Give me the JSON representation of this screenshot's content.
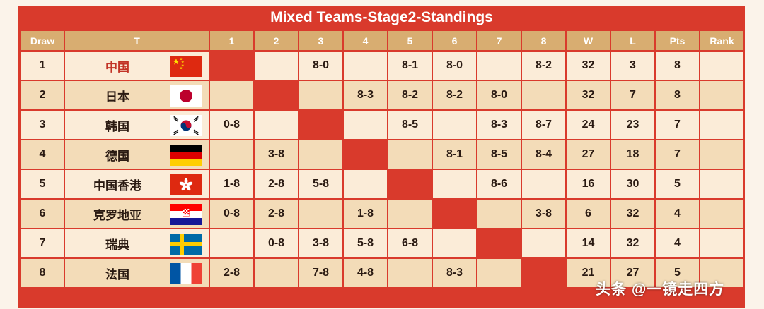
{
  "title": "Mixed Teams-Stage2-Standings",
  "headers": {
    "draw": "Draw",
    "team": "T",
    "cols": [
      "1",
      "2",
      "3",
      "4",
      "5",
      "6",
      "7",
      "8"
    ],
    "w": "W",
    "l": "L",
    "pts": "Pts",
    "rank": "Rank"
  },
  "rows": [
    {
      "draw": "1",
      "team": "中国",
      "flag": "china-flag-icon",
      "results": [
        "",
        "",
        "8-0",
        "",
        "8-1",
        "8-0",
        "",
        "8-2"
      ],
      "w": "32",
      "l": "3",
      "pts": "8",
      "rank": ""
    },
    {
      "draw": "2",
      "team": "日本",
      "flag": "japan-flag-icon",
      "results": [
        "",
        "",
        "",
        "8-3",
        "8-2",
        "8-2",
        "8-0",
        ""
      ],
      "w": "32",
      "l": "7",
      "pts": "8",
      "rank": ""
    },
    {
      "draw": "3",
      "team": "韩国",
      "flag": "korea-flag-icon",
      "results": [
        "0-8",
        "",
        "",
        "",
        "8-5",
        "",
        "8-3",
        "8-7"
      ],
      "w": "24",
      "l": "23",
      "pts": "7",
      "rank": ""
    },
    {
      "draw": "4",
      "team": "德国",
      "flag": "germany-flag-icon",
      "results": [
        "",
        "3-8",
        "",
        "",
        "",
        "8-1",
        "8-5",
        "8-4"
      ],
      "w": "27",
      "l": "18",
      "pts": "7",
      "rank": ""
    },
    {
      "draw": "5",
      "team": "中国香港",
      "flag": "hong-kong-flag-icon",
      "results": [
        "1-8",
        "2-8",
        "5-8",
        "",
        "",
        "",
        "8-6",
        ""
      ],
      "w": "16",
      "l": "30",
      "pts": "5",
      "rank": ""
    },
    {
      "draw": "6",
      "team": "克罗地亚",
      "flag": "croatia-flag-icon",
      "results": [
        "0-8",
        "2-8",
        "",
        "1-8",
        "",
        "",
        "",
        "3-8"
      ],
      "w": "6",
      "l": "32",
      "pts": "4",
      "rank": ""
    },
    {
      "draw": "7",
      "team": "瑞典",
      "flag": "sweden-flag-icon",
      "results": [
        "",
        "0-8",
        "3-8",
        "5-8",
        "6-8",
        "",
        "",
        ""
      ],
      "w": "14",
      "l": "32",
      "pts": "4",
      "rank": ""
    },
    {
      "draw": "8",
      "team": "法国",
      "flag": "france-flag-icon",
      "results": [
        "2-8",
        "",
        "7-8",
        "4-8",
        "",
        "8-3",
        "",
        ""
      ],
      "w": "21",
      "l": "27",
      "pts": "5",
      "rank": ""
    }
  ],
  "watermark": "头条 @一镜走四方",
  "colors": {
    "frame": "#d93a2c",
    "header": "#d8ad71",
    "row_light": "#fbecd8",
    "row_dark": "#f3dcb8",
    "win_text": "#b82a21"
  }
}
